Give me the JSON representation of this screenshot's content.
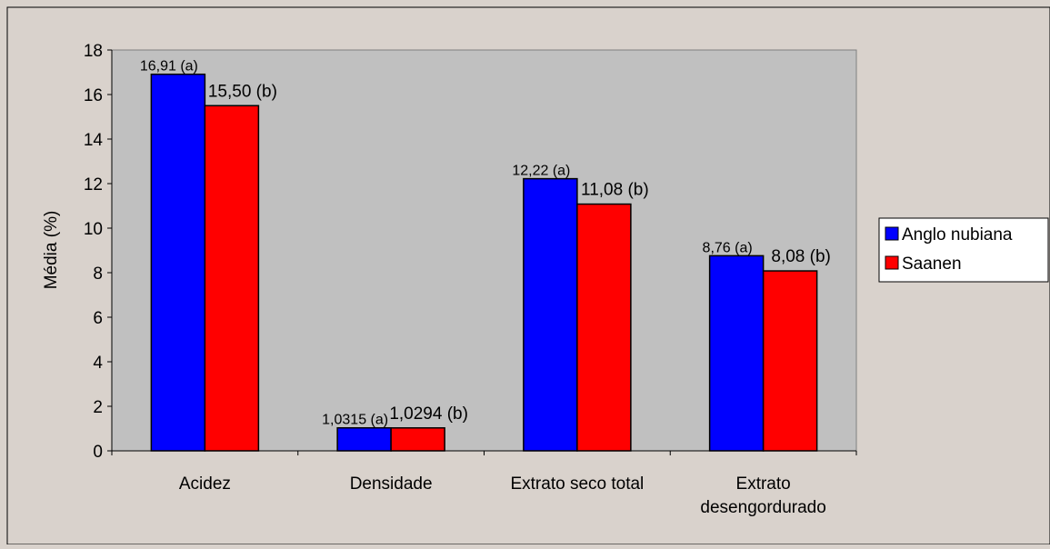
{
  "chart_data": {
    "type": "bar",
    "title": "",
    "xlabel": "",
    "ylabel": "Média (%)",
    "ylim": [
      0,
      18
    ],
    "yticks": [
      "0",
      "2",
      "4",
      "6",
      "8",
      "10",
      "12",
      "14",
      "16",
      "18"
    ],
    "grid": false,
    "legend_position": "right",
    "categories": [
      [
        "Acidez"
      ],
      [
        "Densidade"
      ],
      [
        "Extrato seco total"
      ],
      [
        "Extrato",
        "desengordurado"
      ]
    ],
    "series": [
      {
        "name": "Anglo nubiana",
        "color": "#0000ff",
        "values": [
          16.91,
          1.0315,
          12.22,
          8.76
        ],
        "labels": [
          "16,91 (a)",
          "1,0315 (a)",
          "12,22 (a)",
          "8,76 (a)"
        ]
      },
      {
        "name": "Saanen",
        "color": "#ff0000",
        "values": [
          15.5,
          1.0294,
          11.08,
          8.08
        ],
        "labels": [
          "15,50 (b)",
          "1,0294 (b)",
          "11,08 (b)",
          "8,08 (b)"
        ]
      }
    ],
    "plot_background": "#c0c0c0",
    "chart_background": "#d9d2cc"
  }
}
